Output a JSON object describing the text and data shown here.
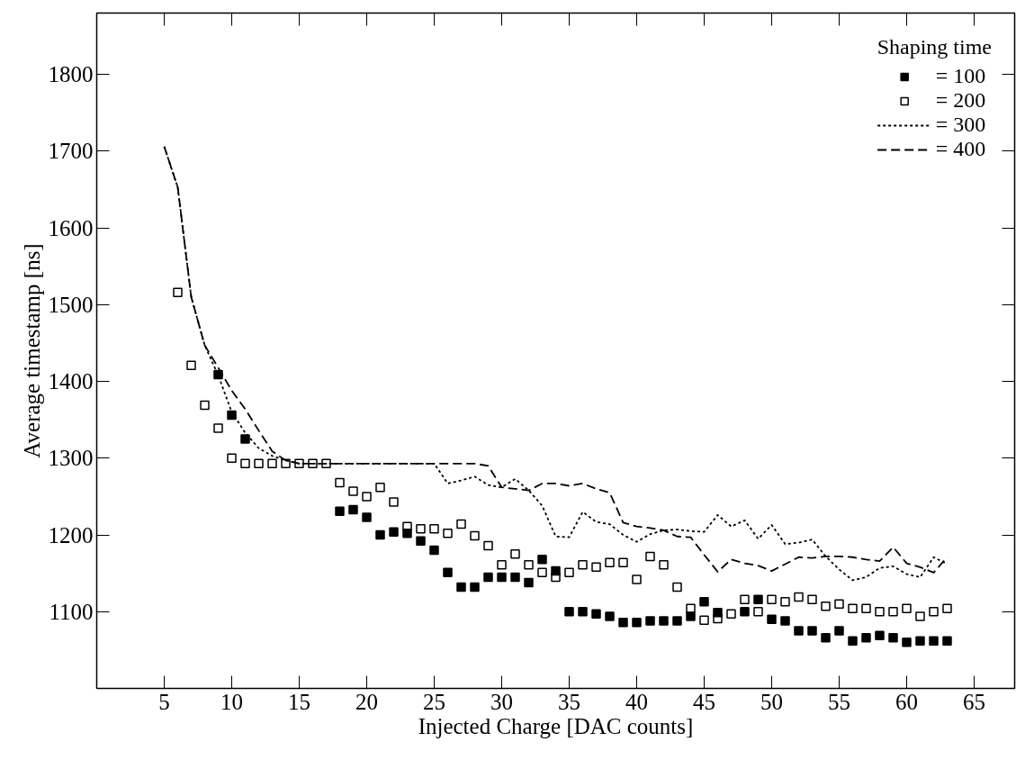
{
  "chart_data": {
    "type": "scatter",
    "xlabel": "Injected Charge [DAC counts]",
    "ylabel": "Average timestamp [ns]",
    "legend_title": "Shaping time",
    "xlim": [
      0,
      68
    ],
    "ylim": [
      1000,
      1880
    ],
    "xticks": [
      5,
      10,
      15,
      20,
      25,
      30,
      35,
      40,
      45,
      50,
      55,
      60,
      65
    ],
    "yticks": [
      1100,
      1200,
      1300,
      1400,
      1500,
      1600,
      1700,
      1800
    ],
    "grid": false,
    "legend": "top right",
    "series": [
      {
        "name": "= 100",
        "marker": "square",
        "color": "#000000",
        "x": [
          9,
          10,
          11,
          18,
          19,
          20,
          21,
          22,
          23,
          24,
          25,
          26,
          27,
          28,
          29,
          30,
          31,
          32,
          33,
          34,
          35,
          36,
          37,
          38,
          39,
          40,
          41,
          42,
          43,
          44,
          45,
          46,
          47,
          48,
          49,
          50,
          51,
          52,
          53,
          54,
          55,
          56,
          57,
          58,
          59,
          60,
          61,
          62,
          63
        ],
        "values": [
          1409,
          1356,
          1325,
          1231,
          1233,
          1223,
          1200,
          1204,
          1202,
          1192,
          1180,
          1151,
          1132,
          1132,
          1145,
          1145,
          1145,
          1138,
          1168,
          1153,
          1100,
          1100,
          1097,
          1094,
          1086,
          1086,
          1088,
          1088,
          1088,
          1094,
          1113,
          1099,
          null,
          1100,
          1116,
          1090,
          1088,
          1075,
          1075,
          1066,
          1075,
          1062,
          1066,
          1069,
          1066,
          1060,
          1062,
          1062,
          1062
        ]
      },
      {
        "name": "= 200",
        "marker": "square_open",
        "color": "#000000",
        "x": [
          6,
          7,
          8,
          9,
          10,
          11,
          12,
          13,
          14,
          15,
          16,
          17,
          18,
          19,
          20,
          21,
          22,
          23,
          24,
          25,
          26,
          27,
          28,
          29,
          30,
          31,
          32,
          33,
          34,
          35,
          36,
          37,
          38,
          39,
          40,
          41,
          42,
          43,
          44,
          45,
          46,
          47,
          48,
          49,
          50,
          51,
          52,
          53,
          54,
          55,
          56,
          57,
          58,
          59,
          60,
          61,
          62,
          63
        ],
        "values": [
          1516,
          1421,
          1369,
          1339,
          1300,
          1293,
          1293,
          1293,
          1293,
          1293,
          1293,
          1293,
          1268,
          1257,
          1250,
          1262,
          1243,
          1211,
          1208,
          1208,
          1202,
          1214,
          1199,
          1186,
          1161,
          1175,
          1161,
          1151,
          1145,
          1151,
          1161,
          1158,
          1164,
          1164,
          1142,
          1172,
          1161,
          1132,
          1104,
          1089,
          1091,
          1097,
          1116,
          1100,
          1116,
          1113,
          1119,
          1116,
          1107,
          1110,
          1104,
          1104,
          1100,
          1100,
          1104,
          1094,
          1100,
          1104
        ]
      },
      {
        "name": "= 300",
        "type": "line",
        "marker": "none",
        "line_style": "dotted",
        "color": "#000000",
        "x": [
          5,
          6,
          7,
          8,
          9,
          10,
          11,
          12,
          13,
          14,
          15,
          16,
          17,
          18,
          19,
          20,
          21,
          22,
          23,
          24,
          25,
          26,
          27,
          28,
          29,
          30,
          31,
          32,
          33,
          34,
          35,
          36,
          37,
          38,
          39,
          40,
          41,
          42,
          43,
          44,
          45,
          46,
          47,
          48,
          49,
          50,
          51,
          52,
          53,
          54,
          55,
          56,
          57,
          58,
          59,
          60,
          61,
          62,
          63
        ],
        "values": [
          1706,
          1653,
          1510,
          1447,
          1408,
          1360,
          1333,
          1313,
          1303,
          1297,
          1293,
          1293,
          1293,
          1293,
          1293,
          1293,
          1293,
          1293,
          1293,
          1293,
          1293,
          1267,
          1271,
          1276,
          1265,
          1262,
          1273,
          1258,
          1238,
          1198,
          1197,
          1230,
          1217,
          1214,
          1200,
          1191,
          1201,
          1206,
          1207,
          1205,
          1204,
          1226,
          1211,
          1219,
          1195,
          1213,
          1188,
          1190,
          1194,
          1172,
          1155,
          1141,
          1145,
          1157,
          1159,
          1149,
          1145,
          1171,
          1162
        ]
      },
      {
        "name": "= 400",
        "type": "line",
        "marker": "none",
        "line_style": "dashed",
        "color": "#000000",
        "x": [
          5,
          6,
          7,
          8,
          9,
          10,
          11,
          12,
          13,
          14,
          15,
          16,
          17,
          18,
          19,
          20,
          21,
          22,
          23,
          24,
          25,
          26,
          27,
          28,
          29,
          30,
          31,
          32,
          33,
          34,
          35,
          36,
          37,
          38,
          39,
          40,
          41,
          42,
          43,
          44,
          45,
          46,
          47,
          48,
          49,
          50,
          51,
          52,
          53,
          54,
          55,
          56,
          57,
          58,
          59,
          60,
          61,
          62,
          63
        ],
        "values": [
          1706,
          1653,
          1510,
          1447,
          1418,
          1388,
          1364,
          1336,
          1309,
          1297,
          1293,
          1293,
          1293,
          1293,
          1293,
          1293,
          1293,
          1293,
          1293,
          1293,
          1293,
          1293,
          1293,
          1293,
          1290,
          1262,
          1260,
          1258,
          1267,
          1267,
          1264,
          1267,
          1260,
          1255,
          1216,
          1211,
          1209,
          1206,
          1198,
          1197,
          1174,
          1152,
          1168,
          1163,
          1160,
          1153,
          1162,
          1171,
          1170,
          1172,
          1172,
          1171,
          1168,
          1166,
          1184,
          1163,
          1158,
          1151,
          1171
        ]
      }
    ]
  }
}
